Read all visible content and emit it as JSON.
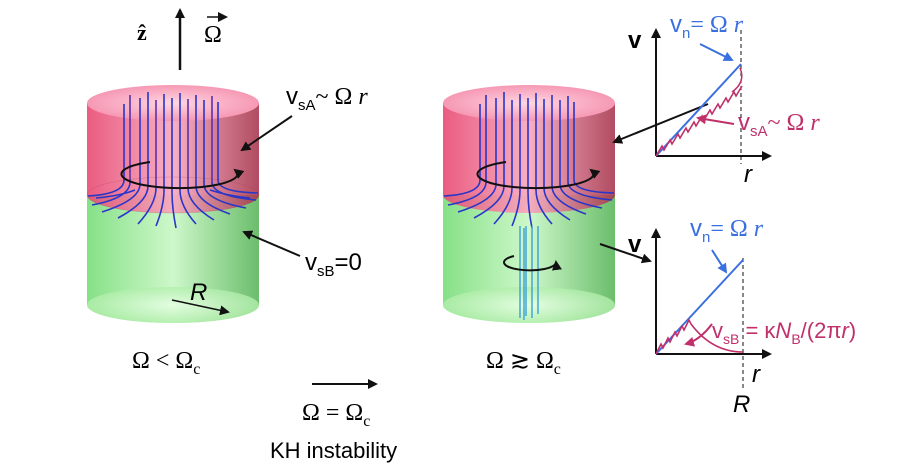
{
  "axis_top": {
    "zhat": "ẑ",
    "omega_vec": "Ω"
  },
  "cylinder_left": {
    "label_vsA_prefix": "v",
    "label_vsA_sub": "sA",
    "label_vsA_rest": "~ Ω ",
    "label_vsA_r": "r",
    "label_vsB_prefix": "v",
    "label_vsB_sub": "sB",
    "label_vsB_rest": "=0",
    "radius_label": "R",
    "condition_left": "Ω < Ω",
    "condition_left_sub": "c"
  },
  "cylinder_right": {
    "condition_right": "Ω ≳ Ω",
    "condition_right_sub": "c"
  },
  "transition": {
    "condition": "Ω = Ω",
    "condition_sub": "c",
    "name": "KH instability"
  },
  "plot_top": {
    "ylabel": "v",
    "xlabel": "r",
    "vn_prefix": "v",
    "vn_sub": "n",
    "vn_rest": "= Ω ",
    "vn_r": "r",
    "vs_prefix": "v",
    "vs_sub": "sA",
    "vs_rest": "~ Ω ",
    "vs_r": "r"
  },
  "plot_bottom": {
    "ylabel": "v",
    "xlabel": "r",
    "R_label": "R",
    "vn_prefix": "v",
    "vn_sub": "n",
    "vn_rest": "= Ω ",
    "vn_r": "r",
    "vs_prefix": "v",
    "vs_sub": "sB",
    "vs_eq": " = κ",
    "vs_N": "N",
    "vs_Nsub": "B",
    "vs_tail": "/(2π",
    "vs_r": "r",
    "vs_close": ")"
  },
  "colors": {
    "top_phase": "#f0507a",
    "bottom_phase": "#7fe07a",
    "vortex_line": "#2a36c8",
    "normal_velocity": "#3a6fe0",
    "superfluid_velocity": "#c0306a"
  }
}
